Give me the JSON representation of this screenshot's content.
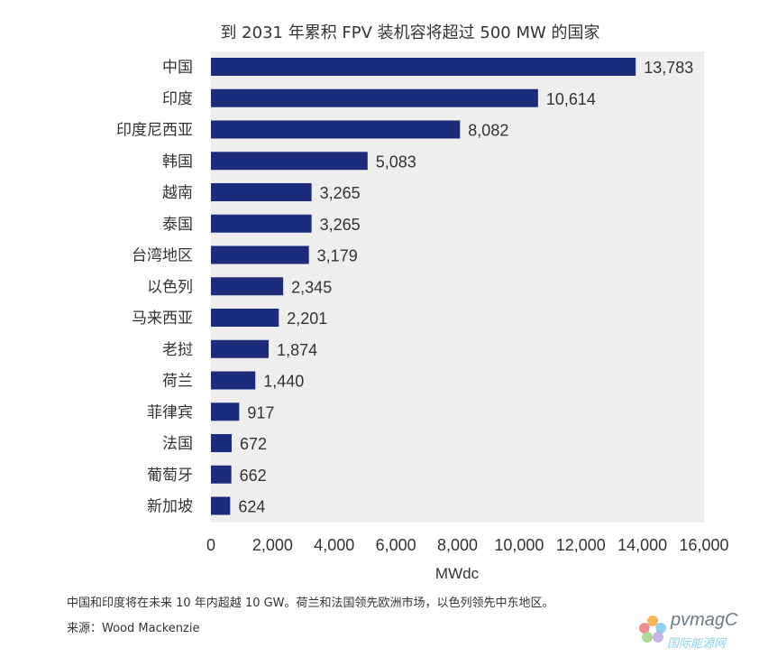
{
  "chart_data": {
    "type": "bar",
    "orientation": "horizontal",
    "title": "到 2031 年累积 FPV 装机容将超过 500 MW 的国家",
    "xlabel": "MWdc",
    "ylabel": "",
    "xlim": [
      0,
      16000
    ],
    "xticks": [
      0,
      2000,
      4000,
      6000,
      8000,
      10000,
      12000,
      14000,
      16000
    ],
    "xtick_labels": [
      "0",
      "2,000",
      "4,000",
      "6,000",
      "8,000",
      "10,000",
      "12,000",
      "14,000",
      "16,000"
    ],
    "grid": false,
    "categories": [
      "中国",
      "印度",
      "印度尼西亚",
      "韩国",
      "越南",
      "泰国",
      "台湾地区",
      "以色列",
      "马来西亚",
      "老挝",
      "荷兰",
      "菲律宾",
      "法国",
      "葡萄牙",
      "新加坡"
    ],
    "values": [
      13783,
      10614,
      8082,
      5083,
      3265,
      3265,
      3179,
      2345,
      2201,
      1874,
      1440,
      917,
      672,
      662,
      624
    ],
    "value_labels": [
      "13,783",
      "10,614",
      "8,082",
      "5,083",
      "3,265",
      "3,265",
      "3,179",
      "2,345",
      "2,201",
      "1,874",
      "1,440",
      "917",
      "672",
      "662",
      "624"
    ],
    "bar_color": "#1c2c7a",
    "plot_background": "#eeeeee"
  },
  "caption": {
    "note": "中国和印度将在未来 10 年内超越 10 GW。荷兰和法国领先欧洲市场，以色列领先中东地区。",
    "source": "来源：Wood Mackenzie"
  },
  "watermark": {
    "logo_icon": "pvmagazine-flower-icon",
    "text": "pvmagC",
    "subtext": "国际能源网"
  }
}
